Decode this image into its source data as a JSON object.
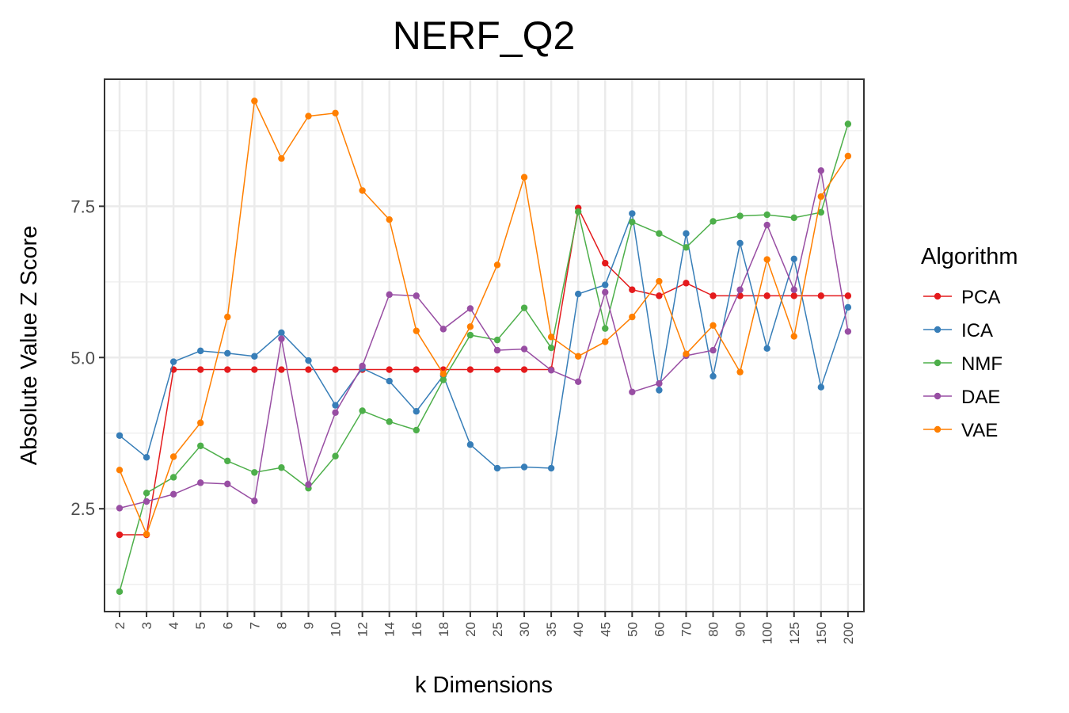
{
  "chart_data": {
    "type": "line",
    "title": "NERF_Q2",
    "xlabel": "k Dimensions",
    "ylabel": "Absolute Value Z Score",
    "categories": [
      "2",
      "3",
      "4",
      "5",
      "6",
      "7",
      "8",
      "9",
      "10",
      "12",
      "14",
      "16",
      "18",
      "20",
      "25",
      "30",
      "35",
      "40",
      "45",
      "50",
      "60",
      "70",
      "80",
      "90",
      "100",
      "125",
      "150",
      "200"
    ],
    "ylim": [
      0.8,
      9.6
    ],
    "yticks": [
      2.5,
      5.0,
      7.5
    ],
    "ytick_labels": [
      "2.5",
      "5.0",
      "7.5"
    ],
    "grid": true,
    "legend": {
      "title": "Algorithm",
      "position": "right"
    },
    "series": [
      {
        "name": "PCA",
        "color": "#e41a1c",
        "values": [
          2.07,
          2.07,
          4.8,
          4.8,
          4.8,
          4.8,
          4.8,
          4.8,
          4.8,
          4.8,
          4.8,
          4.8,
          4.8,
          4.8,
          4.8,
          4.8,
          4.8,
          7.47,
          6.56,
          6.12,
          6.02,
          6.23,
          6.02,
          6.02,
          6.02,
          6.02,
          6.02,
          6.02
        ]
      },
      {
        "name": "ICA",
        "color": "#377eb8",
        "values": [
          3.71,
          3.35,
          4.93,
          5.11,
          5.07,
          5.02,
          5.41,
          4.95,
          4.21,
          4.82,
          4.61,
          4.11,
          4.7,
          3.56,
          3.17,
          3.19,
          3.17,
          6.05,
          6.2,
          7.38,
          4.46,
          7.05,
          4.69,
          6.89,
          5.15,
          6.63,
          4.51,
          5.83
        ]
      },
      {
        "name": "NMF",
        "color": "#4daf4a",
        "values": [
          1.13,
          2.76,
          3.02,
          3.54,
          3.29,
          3.1,
          3.18,
          2.84,
          3.37,
          4.12,
          3.94,
          3.8,
          4.63,
          5.37,
          5.29,
          5.82,
          5.16,
          7.41,
          5.48,
          7.24,
          7.05,
          6.82,
          7.25,
          7.34,
          7.36,
          7.31,
          7.4,
          8.86
        ]
      },
      {
        "name": "DAE",
        "color": "#984ea3",
        "values": [
          2.51,
          2.62,
          2.74,
          2.93,
          2.91,
          2.63,
          5.31,
          2.9,
          4.09,
          4.86,
          6.04,
          6.02,
          5.47,
          5.81,
          5.12,
          5.14,
          4.79,
          4.6,
          6.08,
          4.43,
          4.57,
          5.03,
          5.12,
          6.12,
          7.19,
          6.12,
          8.09,
          5.43
        ]
      },
      {
        "name": "VAE",
        "color": "#ff7f00",
        "values": [
          3.14,
          2.08,
          3.36,
          3.92,
          5.67,
          9.24,
          8.29,
          8.99,
          9.04,
          7.76,
          7.28,
          5.44,
          4.73,
          5.51,
          6.53,
          7.98,
          5.34,
          5.02,
          5.26,
          5.67,
          6.26,
          5.06,
          5.53,
          4.76,
          6.62,
          5.35,
          7.66,
          8.33
        ]
      }
    ]
  }
}
